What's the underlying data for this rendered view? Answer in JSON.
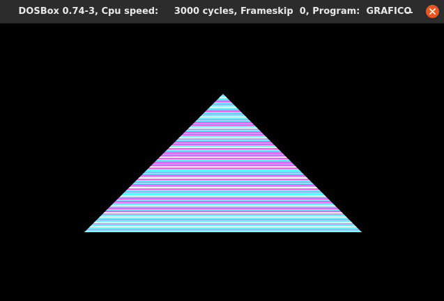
{
  "window": {
    "title": "DOSBox 0.74-3, Cpu speed:     3000 cycles, Frameskip  0, Program:  GRAFICO"
  },
  "colors": {
    "titlebar": "#2c2c2c",
    "title_text": "#e8e8e8",
    "close": "#e95420",
    "background": "#000000",
    "stripe_palette": [
      "#55ffff",
      "#ff55ff",
      "#aaaaff",
      "#ffffff"
    ]
  },
  "icons": {
    "minimize": "minimize-icon",
    "close": "close-icon"
  },
  "graphic": {
    "shape": "triangle",
    "fill": "horizontal color stripes (cyan, magenta, violet, white)"
  }
}
